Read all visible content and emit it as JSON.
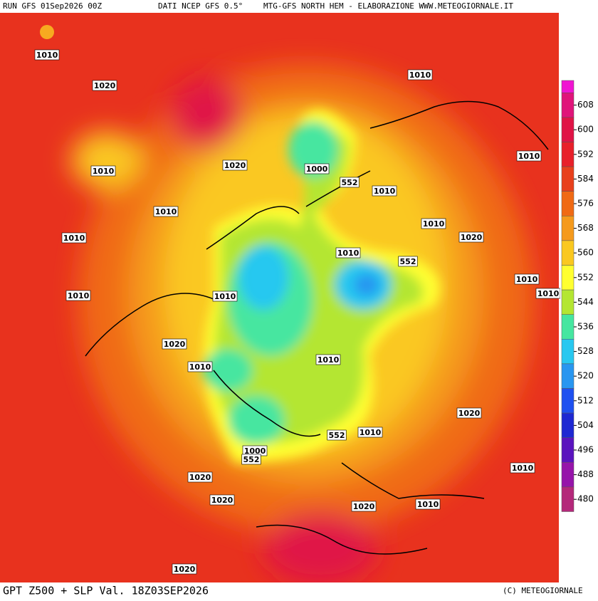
{
  "header": {
    "run": "RUN GFS 01Sep2026 00Z",
    "source": "DATI NCEP GFS 0.5°",
    "credit": "MTG-GFS NORTH HEM - ELABORAZIONE WWW.METEOGIORNALE.IT"
  },
  "footer": {
    "product": "GPT Z500 + SLP Val. 18Z03SEP2026",
    "copyright": "(C) METEOGIORNALE"
  },
  "colorbar": {
    "levels": [
      608,
      600,
      592,
      584,
      576,
      568,
      560,
      552,
      544,
      536,
      528,
      520,
      512,
      504,
      496,
      488,
      480
    ],
    "colors": [
      "#f014d2",
      "#e0147a",
      "#e01446",
      "#e8202a",
      "#e8401c",
      "#f06a14",
      "#f59a1c",
      "#fac820",
      "#ffff30",
      "#b4e632",
      "#46e6a0",
      "#28c8f0",
      "#2896f0",
      "#1e50f0",
      "#1e28d2",
      "#5a14be",
      "#9614aa",
      "#b4287a",
      "#b46478"
    ]
  },
  "map": {
    "labels": [
      "1010",
      "1020",
      "1010",
      "1010",
      "1020",
      "1000",
      "552",
      "1010",
      "1010",
      "1010",
      "1010",
      "1010",
      "1020",
      "1010",
      "552",
      "1010",
      "1010",
      "1010",
      "1010",
      "1020",
      "1010",
      "1010",
      "1020",
      "552",
      "1010",
      "1000",
      "552",
      "1010",
      "1020",
      "1020",
      "1010",
      "1020",
      "1020"
    ]
  }
}
